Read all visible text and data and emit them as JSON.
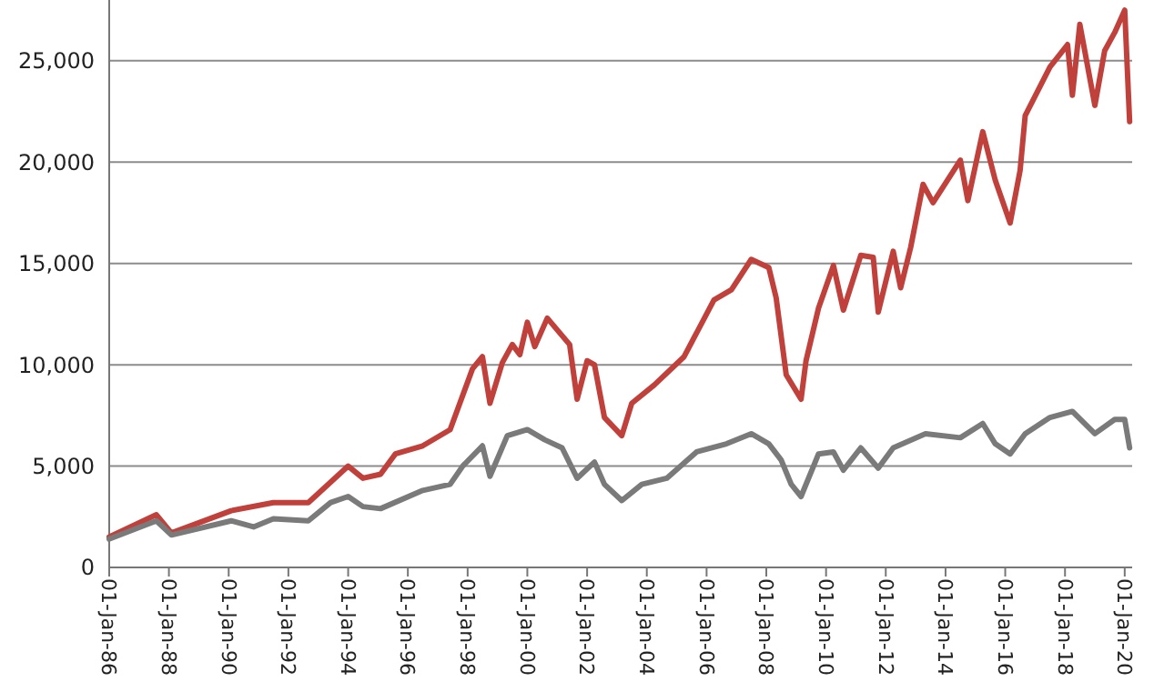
{
  "chart_data": {
    "type": "line",
    "x": [
      "1986-01",
      "1987-08",
      "1988-02",
      "1990-02",
      "1991-07",
      "1992-09",
      "1994-01",
      "1994-07",
      "1995-02",
      "1995-08",
      "1996-07",
      "1997-06",
      "1998-03",
      "1998-07",
      "1998-10",
      "1999-03",
      "1999-07",
      "1999-10",
      "2000-01",
      "2000-04",
      "2000-09",
      "2001-06",
      "2001-09",
      "2002-01",
      "2002-04",
      "2002-08",
      "2003-03",
      "2003-07",
      "2004-04",
      "2005-04",
      "2006-04",
      "2006-11",
      "2007-07",
      "2008-02",
      "2008-05",
      "2008-09",
      "2009-03",
      "2009-05",
      "2009-10",
      "2010-04",
      "2010-08",
      "2011-03",
      "2011-08",
      "2011-10",
      "2012-04",
      "2012-07",
      "2012-11",
      "2013-04",
      "2013-08",
      "2014-07",
      "2014-10",
      "2015-04",
      "2015-09",
      "2016-03",
      "2016-07",
      "2016-09",
      "2017-07",
      "2018-02",
      "2018-04",
      "2018-07",
      "2019-01",
      "2019-05",
      "2019-09",
      "2020-01",
      "2020-03"
    ],
    "series": [
      {
        "color": "#c0403c",
        "values": [
          1500,
          2600,
          1700,
          2800,
          3200,
          3200,
          5000,
          4400,
          4600,
          5600,
          6000,
          6800,
          9800,
          10400,
          8100,
          10100,
          11000,
          10500,
          12100,
          10900,
          12300,
          11000,
          8300,
          10200,
          10000,
          7400,
          6500,
          8100,
          9000,
          10400,
          13200,
          13700,
          15200,
          14800,
          13300,
          9500,
          8300,
          10200,
          12800,
          14900,
          12700,
          15400,
          15300,
          12600,
          15600,
          13800,
          15800,
          18900,
          18000,
          20100,
          18100,
          21500,
          19100,
          17000,
          19600,
          22300,
          24700,
          25800,
          23300,
          26800,
          22800,
          25500,
          26400,
          27500,
          22000
        ]
      },
      {
        "color": "#7a7a7a",
        "x": [
          "1986-01",
          "1987-08",
          "1988-02",
          "1990-02",
          "1990-11",
          "1991-07",
          "1992-09",
          "1993-06",
          "1994-01",
          "1994-07",
          "1995-02",
          "1996-07",
          "1997-06",
          "1997-11",
          "1998-07",
          "1998-10",
          "1999-05",
          "2000-01",
          "2000-08",
          "2001-03",
          "2001-09",
          "2002-04",
          "2002-08",
          "2003-03",
          "2003-11",
          "2004-09",
          "2005-09",
          "2006-09",
          "2007-07",
          "2008-02",
          "2008-07",
          "2008-11",
          "2009-03",
          "2009-10",
          "2010-04",
          "2010-08",
          "2011-03",
          "2011-10",
          "2012-04",
          "2013-05",
          "2014-07",
          "2015-04",
          "2015-09",
          "2016-03",
          "2016-09",
          "2017-07",
          "2018-04",
          "2019-01",
          "2019-09",
          "2020-01",
          "2020-03"
        ],
        "values": [
          1400,
          2300,
          1600,
          2300,
          2000,
          2400,
          2300,
          3200,
          3500,
          3000,
          2900,
          3800,
          4100,
          5000,
          6000,
          4500,
          6500,
          6800,
          6300,
          5900,
          4400,
          5200,
          4100,
          3300,
          4100,
          4400,
          5700,
          6100,
          6600,
          6100,
          5300,
          4100,
          3500,
          5600,
          5700,
          4800,
          5900,
          4900,
          5900,
          6600,
          6400,
          7100,
          6100,
          5600,
          6600,
          7400,
          7700,
          6600,
          7300,
          7300,
          5900
        ]
      }
    ],
    "xlim": [
      "1986-01-01",
      "2020-04-01"
    ],
    "xticks": [
      {
        "value": "1986-01-01",
        "label": "01-Jan-86"
      },
      {
        "value": "1988-01-01",
        "label": "01-Jan-88"
      },
      {
        "value": "1990-01-01",
        "label": "01-Jan-90"
      },
      {
        "value": "1992-01-01",
        "label": "01-Jan-92"
      },
      {
        "value": "1994-01-01",
        "label": "01-Jan-94"
      },
      {
        "value": "1996-01-01",
        "label": "01-Jan-96"
      },
      {
        "value": "1998-01-01",
        "label": "01-Jan-98"
      },
      {
        "value": "2000-01-01",
        "label": "01-Jan-00"
      },
      {
        "value": "2002-01-01",
        "label": "01-Jan-02"
      },
      {
        "value": "2004-01-01",
        "label": "01-Jan-04"
      },
      {
        "value": "2006-01-01",
        "label": "01-Jan-06"
      },
      {
        "value": "2008-01-01",
        "label": "01-Jan-08"
      },
      {
        "value": "2010-01-01",
        "label": "01-Jan-10"
      },
      {
        "value": "2012-01-01",
        "label": "01-Jan-12"
      },
      {
        "value": "2014-01-01",
        "label": "01-Jan-14"
      },
      {
        "value": "2016-01-01",
        "label": "01-Jan-16"
      },
      {
        "value": "2018-01-01",
        "label": "01-Jan-18"
      },
      {
        "value": "2020-01-01",
        "label": "01-Jan-20"
      }
    ],
    "ylim": [
      0,
      28000
    ],
    "yticks": [
      {
        "value": 0,
        "label": "0"
      },
      {
        "value": 5000,
        "label": "5,000"
      },
      {
        "value": 10000,
        "label": "10,000"
      },
      {
        "value": 15000,
        "label": "15,000"
      },
      {
        "value": 20000,
        "label": "20,000"
      },
      {
        "value": 25000,
        "label": "25,000"
      }
    ],
    "grid": "y",
    "marker": "none",
    "line_style": "solid"
  }
}
